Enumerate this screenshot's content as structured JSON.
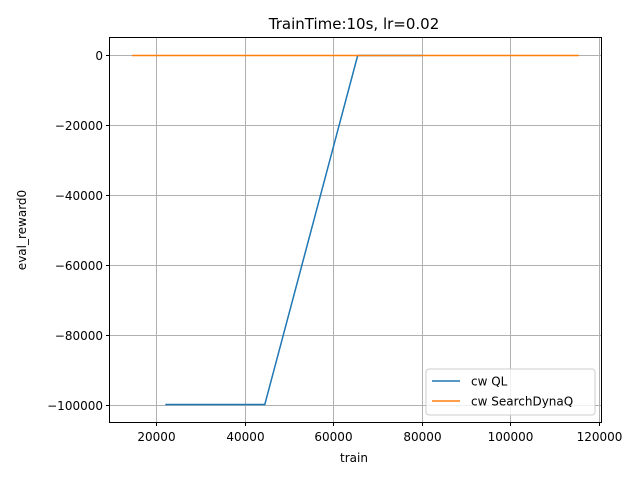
{
  "chart_data": {
    "type": "line",
    "title": "TrainTime:10s, lr=0.02",
    "xlabel": "train",
    "ylabel": "eval_reward0",
    "xlim": [
      9500,
      120500
    ],
    "ylim": [
      -105000,
      5000
    ],
    "xticks": [
      20000,
      40000,
      60000,
      80000,
      100000,
      120000
    ],
    "xtick_labels": [
      "20000",
      "40000",
      "60000",
      "80000",
      "100000",
      "120000"
    ],
    "yticks": [
      0,
      -20000,
      -40000,
      -60000,
      -80000,
      -100000
    ],
    "ytick_labels": [
      "0",
      "−20000",
      "−40000",
      "−60000",
      "−80000",
      "−100000"
    ],
    "grid": true,
    "legend_position": "lower-right",
    "series": [
      {
        "name": "cw QL",
        "color": "#1f77b4",
        "x": [
          22000,
          44500,
          65500,
          80000
        ],
        "y": [
          -100000,
          -100000,
          0,
          0
        ]
      },
      {
        "name": "cw SearchDynaQ",
        "color": "#ff7f0e",
        "x": [
          14500,
          115500
        ],
        "y": [
          0,
          0
        ]
      }
    ]
  }
}
